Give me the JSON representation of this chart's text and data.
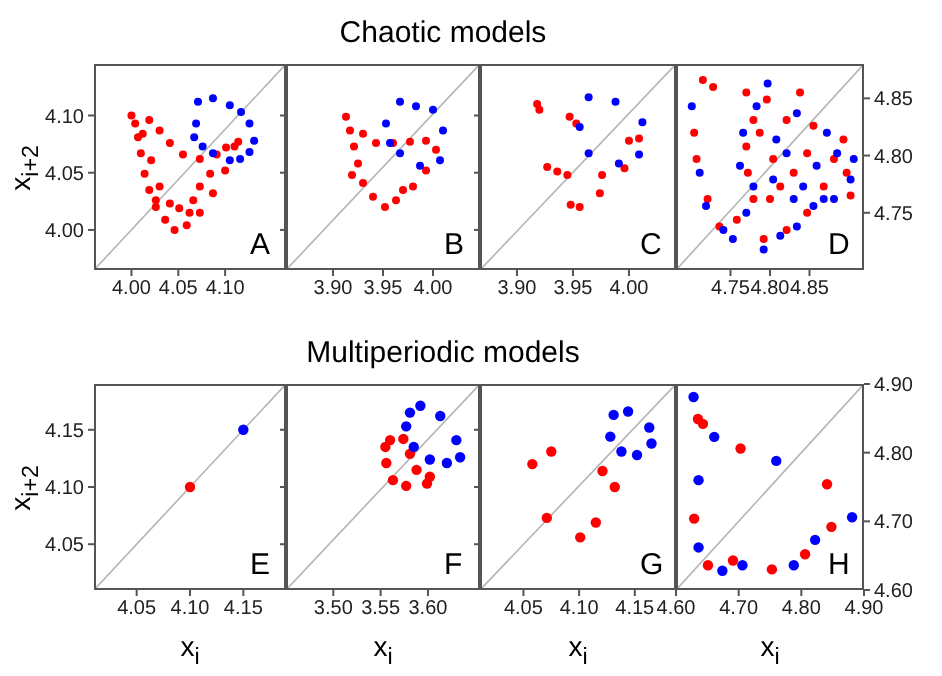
{
  "chart_data": [
    {
      "type": "scatter",
      "ylabel": "x$_{i+2}$",
      "xlim": [
        3.96,
        4.165
      ],
      "ylim": [
        3.965,
        4.145
      ],
      "xticks": [
        {
          "value": 4,
          "label": "4.00"
        },
        {
          "value": 4.05,
          "label": "4.05"
        },
        {
          "value": 4.1,
          "label": "4.10"
        }
      ],
      "yticks": [
        {
          "value": 4,
          "label": "4.00"
        },
        {
          "value": 4.05,
          "label": "4.05"
        },
        {
          "value": 4.1,
          "label": "4.10"
        }
      ],
      "marker": "circle",
      "annotations": [
        "A"
      ],
      "series": [
        {
          "type": "line",
          "marker": "none",
          "color": "#b4b4b4",
          "x": [
            3.96,
            4.165
          ],
          "values": [
            3.965,
            4.145
          ]
        },
        {
          "color": "#ff0000",
          "x": [
            4.0,
            4.004,
            4.007,
            4.01,
            4.014,
            4.019,
            4.026,
            4.036,
            4.046,
            4.059,
            4.073,
            4.087,
            4.1,
            4.11,
            4.114,
            4.019,
            4.03,
            4.041,
            4.055,
            4.073,
            4.091,
            4.101,
            4.012,
            4.021,
            4.03,
            4.026,
            4.041,
            4.066,
            4.073,
            4.084,
            4.062,
            4.051
          ],
          "values": [
            4.1,
            4.093,
            4.081,
            4.067,
            4.049,
            4.035,
            4.02,
            4.009,
            4.0,
            4.004,
            4.015,
            4.032,
            4.052,
            4.073,
            4.077,
            4.096,
            4.087,
            4.076,
            4.066,
            4.062,
            4.066,
            4.072,
            4.084,
            4.061,
            4.038,
            4.026,
            4.023,
            4.026,
            4.038,
            4.049,
            4.015,
            4.019
          ]
        },
        {
          "color": "#0000ff",
          "x": [
            4.071,
            4.087,
            4.105,
            4.117,
            4.126,
            4.131,
            4.126,
            4.116,
            4.105,
            4.087,
            4.076,
            4.067,
            4.069
          ],
          "values": [
            4.112,
            4.115,
            4.109,
            4.103,
            4.093,
            4.078,
            4.068,
            4.062,
            4.061,
            4.067,
            4.073,
            4.081,
            4.093
          ]
        }
      ]
    },
    {
      "type": "scatter",
      "title": "Chaotic models",
      "xlim": [
        3.853,
        4.047
      ],
      "ylim": [
        3.965,
        4.145
      ],
      "xticks": [
        {
          "value": 3.9,
          "label": "3.90"
        },
        {
          "value": 3.95,
          "label": "3.95"
        },
        {
          "value": 4,
          "label": "4.00"
        }
      ],
      "yticks": [
        {
          "value": 4,
          "label": null
        },
        {
          "value": 4.05,
          "label": null
        },
        {
          "value": 4.1,
          "label": null
        }
      ],
      "tick_labels": "x",
      "marker": "circle",
      "annotations": [
        "B"
      ],
      "series": [
        {
          "type": "line",
          "marker": "none",
          "color": "#b4b4b4",
          "x": [
            3.853,
            4.047
          ],
          "values": [
            3.965,
            4.145
          ]
        },
        {
          "color": "#ff0000",
          "x": [
            3.913,
            3.917,
            3.921,
            3.925,
            3.919,
            3.93,
            3.94,
            3.952,
            3.963,
            3.97,
            3.98,
            3.993,
            4.003,
            3.93,
            3.943,
            3.96,
            3.977,
            3.993
          ],
          "values": [
            4.099,
            4.087,
            4.073,
            4.058,
            4.048,
            4.041,
            4.029,
            4.02,
            4.026,
            4.035,
            4.038,
            4.052,
            4.07,
            4.084,
            4.076,
            4.076,
            4.077,
            4.078
          ]
        },
        {
          "color": "#0000ff",
          "x": [
            3.953,
            3.967,
            3.983,
            4.0,
            4.01,
            4.007,
            3.987,
            3.967,
            3.957
          ],
          "values": [
            4.093,
            4.112,
            4.108,
            4.105,
            4.087,
            4.061,
            4.056,
            4.067,
            4.076
          ]
        }
      ]
    },
    {
      "type": "scatter",
      "xlim": [
        3.867,
        4.042
      ],
      "ylim": [
        3.965,
        4.145
      ],
      "xticks": [
        {
          "value": 3.9,
          "label": "3.90"
        },
        {
          "value": 3.95,
          "label": "3.95"
        },
        {
          "value": 4,
          "label": "4.00"
        }
      ],
      "yticks": [
        {
          "value": 4,
          "label": null
        },
        {
          "value": 4.05,
          "label": null
        },
        {
          "value": 4.1,
          "label": null
        }
      ],
      "tick_labels": "x",
      "marker": "circle",
      "annotations": [
        "C"
      ],
      "series": [
        {
          "type": "line",
          "marker": "none",
          "color": "#b4b4b4",
          "x": [
            3.867,
            4.042
          ],
          "values": [
            3.965,
            4.145
          ]
        },
        {
          "color": "#ff0000",
          "x": [
            3.918,
            3.92,
            3.947,
            3.953,
            3.927,
            3.936,
            3.945,
            3.948,
            3.956,
            3.976,
            3.974,
            4.0,
            4.009,
            3.996
          ],
          "values": [
            4.11,
            4.105,
            4.099,
            4.093,
            4.055,
            4.051,
            4.048,
            4.022,
            4.02,
            4.048,
            4.032,
            4.078,
            4.08,
            4.054
          ]
        },
        {
          "color": "#0000ff",
          "x": [
            3.964,
            3.988,
            3.956,
            4.012,
            3.964,
            3.991,
            4.009
          ],
          "values": [
            4.116,
            4.112,
            4.09,
            4.094,
            4.067,
            4.058,
            4.066
          ]
        }
      ]
    },
    {
      "type": "scatter",
      "xlim": [
        4.681,
        4.919
      ],
      "ylim": [
        4.7,
        4.88
      ],
      "xticks": [
        {
          "value": 4.75,
          "label": "4.75"
        },
        {
          "value": 4.8,
          "label": "4.80"
        },
        {
          "value": 4.85,
          "label": "4.85"
        }
      ],
      "yticks": [
        {
          "value": 4.75,
          "label": "4.75"
        },
        {
          "value": 4.8,
          "label": "4.80"
        },
        {
          "value": 4.85,
          "label": "4.85"
        }
      ],
      "marker": "circle",
      "annotations": [
        "D"
      ],
      "series": [
        {
          "type": "line",
          "marker": "none",
          "color": "#b4b4b4",
          "x": [
            4.681,
            4.919
          ],
          "values": [
            4.7,
            4.88
          ]
        },
        {
          "color": "#ff0000",
          "x": [
            4.704,
            4.707,
            4.715,
            4.728,
            4.721,
            4.736,
            4.77,
            4.779,
            4.77,
            4.772,
            4.787,
            4.796,
            4.804,
            4.813,
            4.821,
            4.83,
            4.838,
            4.847,
            4.855,
            4.868,
            4.881,
            4.893,
            4.897,
            4.902,
            4.792,
            4.821,
            4.847,
            4.779,
            4.758,
            4.8
          ],
          "values": [
            4.82,
            4.797,
            4.866,
            4.86,
            4.762,
            4.738,
            4.855,
            4.831,
            4.808,
            4.785,
            4.82,
            4.849,
            4.797,
            4.773,
            4.831,
            4.785,
            4.855,
            4.802,
            4.826,
            4.773,
            4.797,
            4.814,
            4.785,
            4.765,
            4.727,
            4.735,
            4.75,
            4.762,
            4.744,
            4.762
          ]
        },
        {
          "color": "#0000ff",
          "x": [
            4.701,
            4.711,
            4.719,
            4.741,
            4.753,
            4.762,
            4.766,
            4.783,
            4.797,
            4.808,
            4.821,
            4.834,
            4.842,
            4.859,
            4.872,
            4.885,
            4.902,
            4.906,
            4.792,
            4.813,
            4.834,
            4.855,
            4.868,
            4.779,
            4.804,
            4.77,
            4.83,
            4.881
          ],
          "values": [
            4.843,
            4.785,
            4.756,
            4.735,
            4.727,
            4.791,
            4.82,
            4.843,
            4.863,
            4.814,
            4.802,
            4.837,
            4.773,
            4.791,
            4.82,
            4.802,
            4.779,
            4.797,
            4.718,
            4.73,
            4.738,
            4.756,
            4.762,
            4.773,
            4.779,
            4.75,
            4.762,
            4.762
          ]
        }
      ]
    },
    {
      "type": "scatter",
      "xlabel": "x$_{i}$",
      "ylabel": "x$_{i+2}$",
      "xlim": [
        4.01,
        4.19
      ],
      "ylim": [
        4.01,
        4.19
      ],
      "xticks": [
        {
          "value": 4.05,
          "label": "4.05"
        },
        {
          "value": 4.1,
          "label": "4.10"
        },
        {
          "value": 4.15,
          "label": "4.15"
        }
      ],
      "yticks": [
        {
          "value": 4.05,
          "label": "4.05"
        },
        {
          "value": 4.1,
          "label": "4.10"
        },
        {
          "value": 4.15,
          "label": "4.15"
        }
      ],
      "marker": "circle",
      "annotations": [
        "E"
      ],
      "series": [
        {
          "type": "line",
          "marker": "none",
          "color": "#b4b4b4",
          "x": [
            4.01,
            4.19
          ],
          "values": [
            4.01,
            4.19
          ]
        },
        {
          "color": "#ff0000",
          "x": [
            4.1
          ],
          "values": [
            4.1
          ]
        },
        {
          "color": "#0000ff",
          "x": [
            4.15
          ],
          "values": [
            4.15
          ]
        }
      ]
    },
    {
      "type": "scatter",
      "title": "Multiperiodic models",
      "xlabel": "x$_{i}$",
      "xlim": [
        3.45,
        3.655
      ],
      "ylim": [
        4.01,
        4.19
      ],
      "xticks": [
        {
          "value": 3.5,
          "label": "3.50"
        },
        {
          "value": 3.55,
          "label": "3.55"
        },
        {
          "value": 3.6,
          "label": "3.60"
        }
      ],
      "yticks": [
        {
          "value": 4.05,
          "label": null
        },
        {
          "value": 4.1,
          "label": null
        },
        {
          "value": 4.15,
          "label": null
        }
      ],
      "tick_labels": "x",
      "marker": "circle",
      "annotations": [
        "F"
      ],
      "series": [
        {
          "type": "line",
          "marker": "none",
          "color": "#b4b4b4",
          "x": [
            3.45,
            3.655
          ],
          "values": [
            4.01,
            4.19
          ]
        },
        {
          "color": "#ff0000",
          "x": [
            3.56,
            3.574,
            3.581,
            3.588,
            3.602,
            3.599,
            3.577,
            3.563,
            3.556,
            3.555
          ],
          "values": [
            4.141,
            4.142,
            4.129,
            4.115,
            4.109,
            4.103,
            4.101,
            4.106,
            4.121,
            4.135
          ]
        },
        {
          "color": "#0000ff",
          "x": [
            3.581,
            3.592,
            3.613,
            3.63,
            3.634,
            3.62,
            3.602,
            3.585,
            3.577
          ],
          "values": [
            4.165,
            4.171,
            4.162,
            4.141,
            4.126,
            4.121,
            4.124,
            4.135,
            4.153
          ]
        }
      ]
    },
    {
      "type": "scatter",
      "xlabel": "x$_{i}$",
      "xlim": [
        4.011,
        4.187
      ],
      "ylim": [
        4.01,
        4.19
      ],
      "xticks": [
        {
          "value": 4.05,
          "label": "4.05"
        },
        {
          "value": 4.1,
          "label": "4.10"
        },
        {
          "value": 4.15,
          "label": "4.15"
        }
      ],
      "yticks": [
        {
          "value": 4.05,
          "label": null
        },
        {
          "value": 4.1,
          "label": null
        },
        {
          "value": 4.15,
          "label": null
        }
      ],
      "tick_labels": "x",
      "marker": "circle",
      "annotations": [
        "G"
      ],
      "series": [
        {
          "type": "line",
          "marker": "none",
          "color": "#b4b4b4",
          "x": [
            4.011,
            4.187
          ],
          "values": [
            4.01,
            4.19
          ]
        },
        {
          "color": "#ff0000",
          "x": [
            4.058,
            4.075,
            4.071,
            4.121,
            4.132,
            4.115,
            4.101
          ],
          "values": [
            4.12,
            4.131,
            4.073,
            4.114,
            4.1,
            4.069,
            4.056
          ]
        },
        {
          "color": "#0000ff",
          "x": [
            4.131,
            4.144,
            4.128,
            4.138,
            4.152,
            4.163,
            4.165
          ],
          "values": [
            4.163,
            4.166,
            4.144,
            4.131,
            4.128,
            4.152,
            4.138
          ]
        }
      ]
    },
    {
      "type": "scatter",
      "xlabel": "x$_{i}$",
      "xlim": [
        4.6,
        4.9
      ],
      "ylim": [
        4.6,
        4.9
      ],
      "xticks": [
        {
          "value": 4.6,
          "label": "4.60"
        },
        {
          "value": 4.7,
          "label": "4.70"
        },
        {
          "value": 4.8,
          "label": "4.80"
        },
        {
          "value": 4.9,
          "label": "4.90"
        }
      ],
      "yticks": [
        {
          "value": 4.6,
          "label": "4.60"
        },
        {
          "value": 4.7,
          "label": "4.70"
        },
        {
          "value": 4.8,
          "label": "4.80"
        },
        {
          "value": 4.9,
          "label": "4.90"
        }
      ],
      "marker": "circle",
      "annotations": [
        "H"
      ],
      "series": [
        {
          "type": "line",
          "marker": "none",
          "color": "#b4b4b4",
          "x": [
            4.6,
            4.9
          ],
          "values": [
            4.6,
            4.9
          ]
        },
        {
          "color": "#ff0000",
          "x": [
            4.629,
            4.635,
            4.643,
            4.651,
            4.691,
            4.703,
            4.753,
            4.806,
            4.841,
            4.848
          ],
          "values": [
            4.704,
            4.849,
            4.842,
            4.636,
            4.643,
            4.806,
            4.63,
            4.652,
            4.754,
            4.692
          ]
        },
        {
          "color": "#0000ff",
          "x": [
            4.628,
            4.636,
            4.661,
            4.636,
            4.674,
            4.706,
            4.76,
            4.788,
            4.822,
            4.881
          ],
          "values": [
            4.881,
            4.76,
            4.823,
            4.662,
            4.628,
            4.636,
            4.788,
            4.636,
            4.673,
            4.706
          ]
        }
      ]
    }
  ]
}
